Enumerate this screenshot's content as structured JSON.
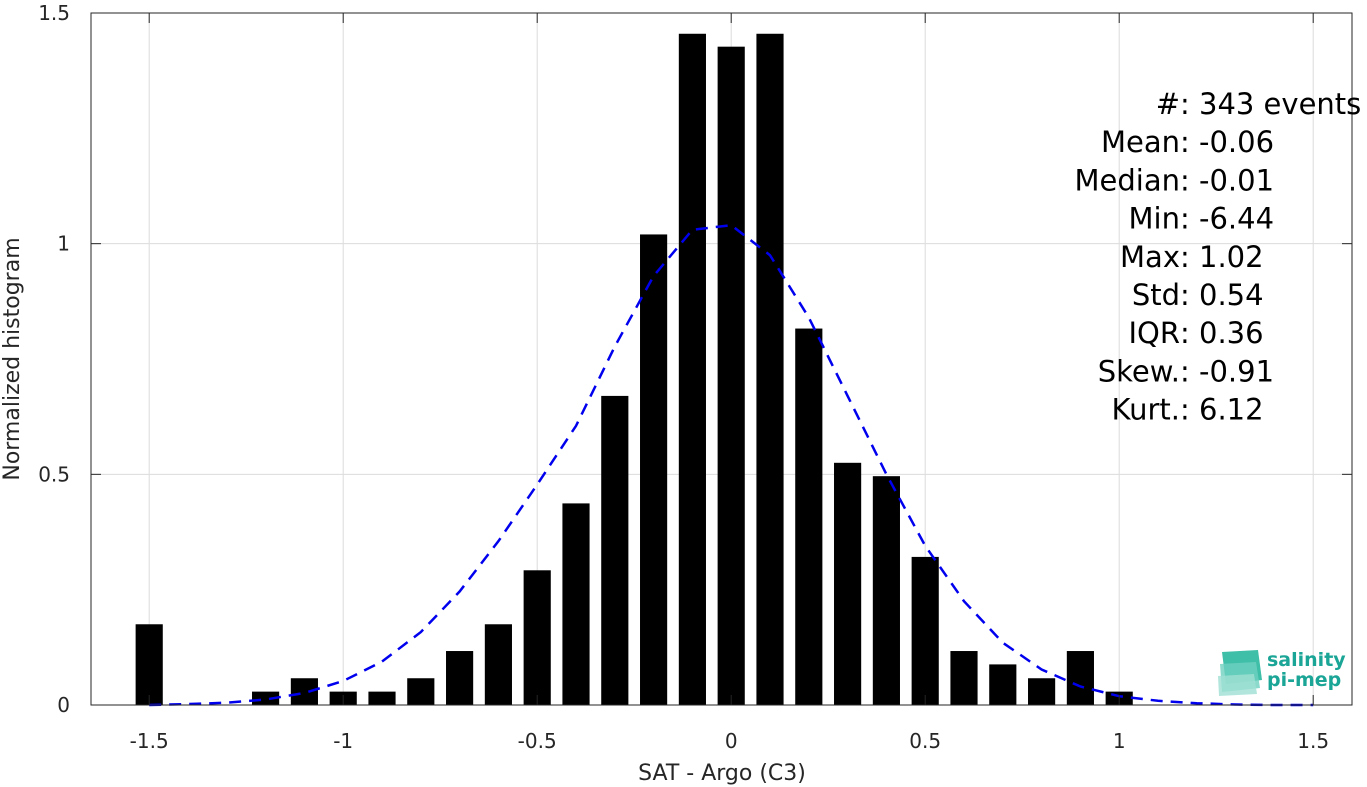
{
  "chart_data": {
    "type": "bar",
    "xlabel": "SAT - Argo (C3)",
    "ylabel": "Normalized histogram",
    "xlim": [
      -1.65,
      1.6
    ],
    "ylim": [
      0,
      1.5
    ],
    "xticks": [
      "-1.5",
      "-1",
      "-0.5",
      "0",
      "0.5",
      "1",
      "1.5"
    ],
    "xtick_values": [
      -1.5,
      -1,
      -0.5,
      0,
      0.5,
      1,
      1.5
    ],
    "yticks": [
      "0",
      "0.5",
      "1",
      "1.5"
    ],
    "ytick_values": [
      0,
      0.5,
      1,
      1.5
    ],
    "grid": true,
    "bar_width": 0.07,
    "bar_color": "#000000",
    "bars": {
      "x": [
        -1.5,
        -1.2,
        -1.1,
        -1.0,
        -0.9,
        -0.8,
        -0.7,
        -0.6,
        -0.5,
        -0.4,
        -0.3,
        -0.2,
        -0.1,
        0.0,
        0.1,
        0.2,
        0.3,
        0.4,
        0.5,
        0.6,
        0.7,
        0.8,
        0.9,
        1.0
      ],
      "values": [
        0.175,
        0.029,
        0.058,
        0.029,
        0.029,
        0.058,
        0.117,
        0.175,
        0.292,
        0.437,
        0.67,
        1.02,
        1.455,
        1.427,
        1.455,
        0.816,
        0.525,
        0.496,
        0.321,
        0.117,
        0.088,
        0.058,
        0.117,
        0.029
      ]
    },
    "fit_curve": {
      "style": "dashed",
      "color": "#0000ee",
      "x": [
        -1.5,
        -1.4,
        -1.3,
        -1.2,
        -1.1,
        -1.0,
        -0.9,
        -0.8,
        -0.7,
        -0.6,
        -0.5,
        -0.4,
        -0.3,
        -0.2,
        -0.1,
        0.0,
        0.1,
        0.2,
        0.3,
        0.4,
        0.5,
        0.6,
        0.7,
        0.8,
        0.9,
        1.0,
        1.1,
        1.2,
        1.3,
        1.4,
        1.5
      ],
      "y": [
        0.0,
        0.002,
        0.005,
        0.012,
        0.026,
        0.052,
        0.094,
        0.158,
        0.246,
        0.355,
        0.478,
        0.605,
        0.777,
        0.93,
        1.03,
        1.04,
        0.975,
        0.84,
        0.67,
        0.5,
        0.345,
        0.225,
        0.135,
        0.077,
        0.04,
        0.019,
        0.009,
        0.004,
        0.001,
        0.0,
        0.0
      ]
    },
    "annotations": [
      {
        "label": "#  ",
        "value": ": 343 events"
      },
      {
        "label": "Mean ",
        "value": ": -0.06"
      },
      {
        "label": "Median ",
        "value": ": -0.01"
      },
      {
        "label": "Min ",
        "value": ": -6.44"
      },
      {
        "label": "Max ",
        "value": ": 1.02"
      },
      {
        "label": "Std ",
        "value": ": 0.54"
      },
      {
        "label": "IQR ",
        "value": ": 0.36"
      },
      {
        "label": "Skew. ",
        "value": ": -0.91"
      },
      {
        "label": "Kurt. ",
        "value": ": 6.12"
      }
    ]
  },
  "logo": {
    "line1": "salinity",
    "line2": "pi-mep",
    "color": "#1aa596"
  }
}
